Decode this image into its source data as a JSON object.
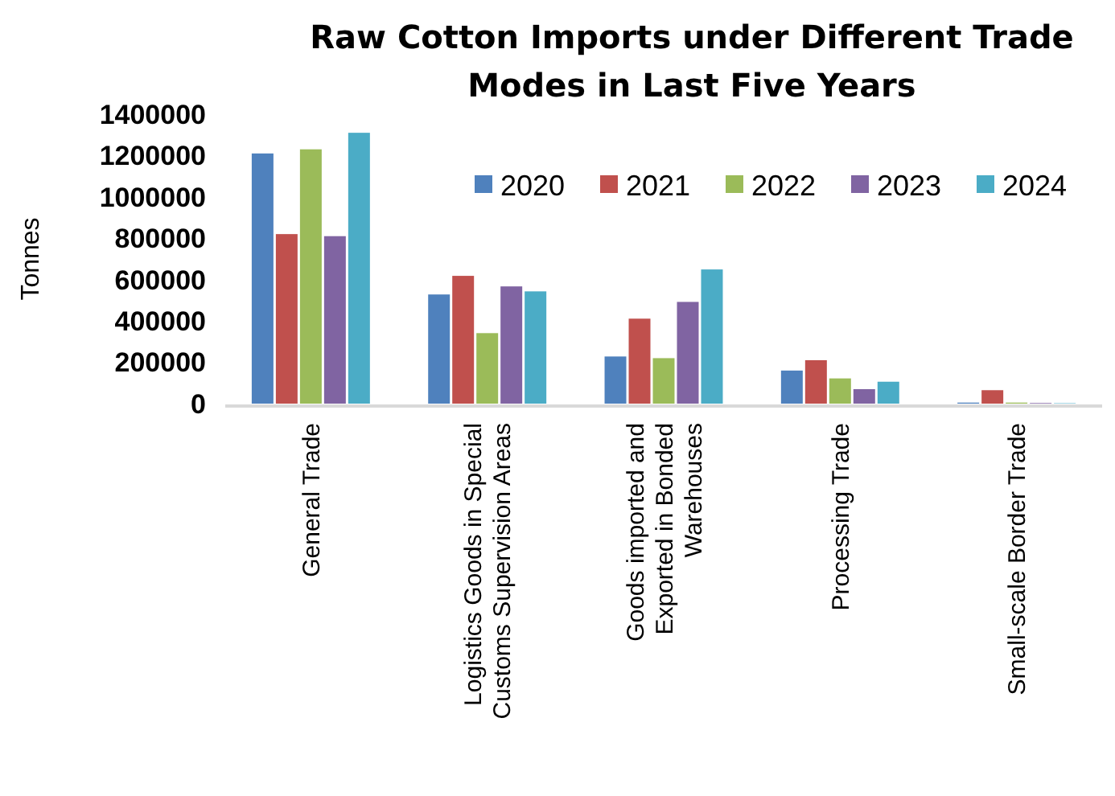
{
  "chart_data": {
    "type": "bar",
    "title": "Raw Cotton Imports under Different Trade Modes in Last Five Years",
    "ylabel": "Tonnes",
    "categories": [
      "General Trade",
      "Logistics Goods in Special Customs Supervision Areas",
      "Goods imported and Exported in Bonded Warehouses",
      "Processing Trade",
      "Small-scale Border Trade"
    ],
    "series": [
      {
        "name": "2020",
        "color": "#4f81bd",
        "values": [
          1210000,
          528000,
          228000,
          160000,
          5000
        ]
      },
      {
        "name": "2021",
        "color": "#c0504d",
        "values": [
          820000,
          618000,
          411000,
          210000,
          65000
        ]
      },
      {
        "name": "2022",
        "color": "#9bbb59",
        "values": [
          1230000,
          341000,
          220000,
          122000,
          5000
        ]
      },
      {
        "name": "2023",
        "color": "#8064a2",
        "values": [
          810000,
          567000,
          492000,
          70000,
          3000
        ]
      },
      {
        "name": "2024",
        "color": "#4bacc6",
        "values": [
          1310000,
          543000,
          649000,
          106000,
          2000
        ]
      }
    ],
    "ylim": [
      0,
      1400000
    ],
    "yticks": [
      0,
      200000,
      400000,
      600000,
      800000,
      1000000,
      1200000,
      1400000
    ],
    "grid": false,
    "legend": "top right"
  }
}
